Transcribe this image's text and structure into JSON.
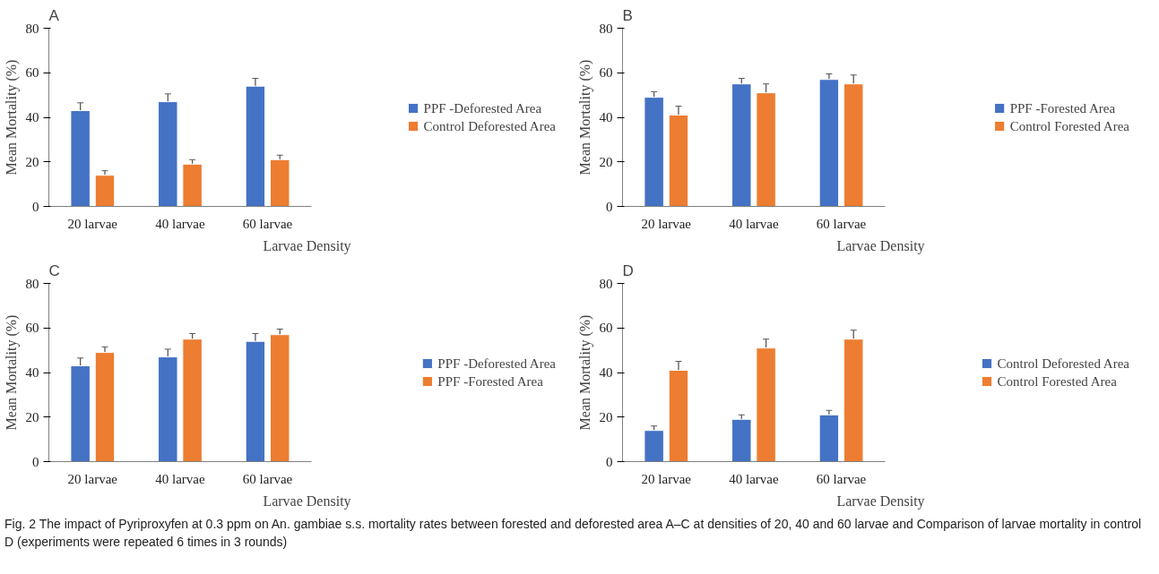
{
  "chart_data": [
    {
      "type": "bar",
      "title": "A",
      "xlabel": "Larvae Density",
      "ylabel": "Mean Mortality (%)",
      "categories": [
        "20 larvae",
        "40 larvae",
        "60 larvae"
      ],
      "ylim": [
        0,
        80
      ],
      "yticks": [
        0,
        20,
        40,
        60,
        80
      ],
      "legend": "right",
      "series": [
        {
          "name": "PPF -Deforested Area",
          "color": "#4472c4",
          "values": [
            43,
            47,
            54
          ],
          "errors": [
            3.5,
            3.5,
            3.5
          ]
        },
        {
          "name": "Control Deforested Area",
          "color": "#ed7d31",
          "values": [
            14,
            19,
            21
          ],
          "errors": [
            2,
            2,
            2
          ]
        }
      ]
    },
    {
      "type": "bar",
      "title": "B",
      "xlabel": "Larvae Density",
      "ylabel": "Mean Mortality (%)",
      "categories": [
        "20 larvae",
        "40 larvae",
        "60 larvae"
      ],
      "ylim": [
        0,
        80
      ],
      "yticks": [
        0,
        20,
        40,
        60,
        80
      ],
      "legend": "right",
      "series": [
        {
          "name": "PPF -Forested Area",
          "color": "#4472c4",
          "values": [
            49,
            55,
            57
          ],
          "errors": [
            2.5,
            2.5,
            2.5
          ]
        },
        {
          "name": "Control Forested Area",
          "color": "#ed7d31",
          "values": [
            41,
            51,
            55
          ],
          "errors": [
            4,
            4,
            4
          ]
        }
      ]
    },
    {
      "type": "bar",
      "title": "C",
      "xlabel": "Larvae Density",
      "ylabel": "Mean Mortality (%)",
      "categories": [
        "20 larvae",
        "40 larvae",
        "60 larvae"
      ],
      "ylim": [
        0,
        80
      ],
      "yticks": [
        0,
        20,
        40,
        60,
        80
      ],
      "legend": "right",
      "series": [
        {
          "name": "PPF -Deforested Area",
          "color": "#4472c4",
          "values": [
            43,
            47,
            54
          ],
          "errors": [
            3.5,
            3.5,
            3.5
          ]
        },
        {
          "name": "PPF -Forested Area",
          "color": "#ed7d31",
          "values": [
            49,
            55,
            57
          ],
          "errors": [
            2.5,
            2.5,
            2.5
          ]
        }
      ]
    },
    {
      "type": "bar",
      "title": "D",
      "xlabel": "Larvae Density",
      "ylabel": "Mean Mortality (%)",
      "categories": [
        "20 larvae",
        "40 larvae",
        "60 larvae"
      ],
      "ylim": [
        0,
        80
      ],
      "yticks": [
        0,
        20,
        40,
        60,
        80
      ],
      "legend": "right",
      "series": [
        {
          "name": "Control Deforested Area",
          "color": "#4472c4",
          "values": [
            14,
            19,
            21
          ],
          "errors": [
            2,
            2,
            2
          ]
        },
        {
          "name": "Control Forested Area",
          "color": "#ed7d31",
          "values": [
            41,
            51,
            55
          ],
          "errors": [
            4,
            4,
            4
          ]
        }
      ],
      "annotations": [
        "Fig. 2  The impact of Pyriproxyfen at 0.3 ppm on An. gambiae s.s. mortality rates between forested and deforested area A–C at densities of 20, 40 and 60 larvae and Comparison of larvae mortality in control D (experiments were repeated 6 times in 3 rounds)"
      ]
    }
  ]
}
